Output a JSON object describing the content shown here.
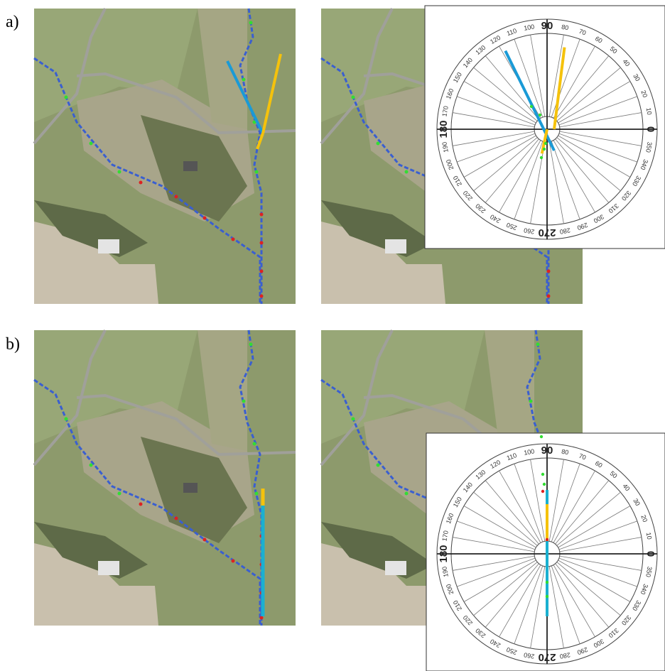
{
  "panels": [
    {
      "label": "a)",
      "protractor": {
        "labels": [
          "0",
          "10",
          "20",
          "30",
          "40",
          "50",
          "60",
          "70",
          "80",
          "90",
          "100",
          "110",
          "120",
          "130",
          "140",
          "150",
          "160",
          "170",
          "180",
          "190",
          "200",
          "210",
          "220",
          "230",
          "240",
          "250",
          "260",
          "270",
          "280",
          "290",
          "300",
          "310",
          "320",
          "330",
          "340",
          "350"
        ]
      }
    },
    {
      "label": "b)",
      "protractor": {
        "labels": [
          "0",
          "10",
          "20",
          "30",
          "40",
          "50",
          "60",
          "70",
          "80",
          "90",
          "100",
          "110",
          "120",
          "130",
          "140",
          "150",
          "160",
          "170",
          "180",
          "190",
          "200",
          "210",
          "220",
          "230",
          "240",
          "250",
          "260",
          "270",
          "280",
          "290",
          "300",
          "310",
          "320",
          "330",
          "340",
          "350"
        ]
      }
    }
  ]
}
